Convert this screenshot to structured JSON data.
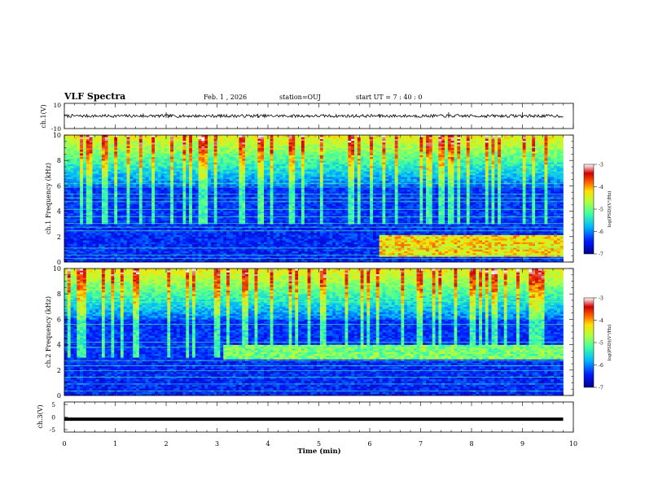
{
  "header": {
    "title": "VLF Spectra",
    "date": "Feb. 1 , 2026",
    "station": "station=OUJ",
    "start": "start UT = 7 : 40 : 0"
  },
  "colors": {
    "colormap": [
      "#00008c",
      "#0018ff",
      "#00b8ff",
      "#40ffa0",
      "#b0ff40",
      "#ffe000",
      "#ff6000",
      "#d00000",
      "#ffffff"
    ]
  },
  "chart_data": [
    {
      "type": "line",
      "panel": "ch1-waveform",
      "ylabel": "ch.1(V)",
      "ylim": [
        -10,
        10
      ],
      "yticks": [
        "10",
        "-10"
      ],
      "xlim": [
        0,
        10
      ],
      "level": 0,
      "noise_amplitude": 1.2,
      "spikes": [
        {
          "x": 2.0,
          "y": 2.8
        },
        {
          "x": 1.55,
          "y": 2.0
        },
        {
          "x": 7.55,
          "y": 3.0
        },
        {
          "x": 9.0,
          "y": 2.8
        },
        {
          "x": 3.8,
          "y": 1.8
        },
        {
          "x": 6.2,
          "y": 1.6
        }
      ]
    },
    {
      "type": "heatmap",
      "panel": "ch1-spectrogram",
      "ylabel": "ch.1 Frequency (kHz)",
      "ylim": [
        0,
        10
      ],
      "yticks": [
        "0",
        "2",
        "4",
        "6",
        "8",
        "10"
      ],
      "xlim": [
        0,
        9.8
      ],
      "colorbar": {
        "label": "log(PSD)(V²/Hz)",
        "range": [
          -7,
          -3
        ],
        "ticks": [
          "-3",
          "-4",
          "-5",
          "-6",
          "-7"
        ]
      },
      "lines_khz": [
        0.3,
        0.55,
        1.1,
        2.45,
        2.75,
        3.05,
        3.55,
        4.15,
        4.75,
        5.05,
        5.35,
        5.9,
        6.2
      ],
      "emission_band": {
        "t_start": 6.2,
        "f_low": 0.5,
        "f_high": 2.1,
        "level": -4.3
      }
    },
    {
      "type": "heatmap",
      "panel": "ch2-spectrogram",
      "ylabel": "ch.2 Frequency (kHz)",
      "ylim": [
        0,
        10
      ],
      "yticks": [
        "0",
        "2",
        "4",
        "6",
        "8",
        "10"
      ],
      "xlim": [
        0,
        9.8
      ],
      "colorbar": {
        "label": "log(PSD)(V²/Hz)",
        "range": [
          -7,
          -3
        ],
        "ticks": [
          "-3",
          "-4",
          "-5",
          "-6",
          "-7"
        ]
      },
      "lines_khz": [
        0.35,
        0.9,
        1.45,
        1.95,
        2.35,
        2.75,
        3.8,
        4.2,
        5.6,
        7.4
      ],
      "emission_band": {
        "t_start": 3.1,
        "f_low": 2.8,
        "f_high": 4.0,
        "level": -5.0
      }
    },
    {
      "type": "line",
      "panel": "ch3-waveform",
      "ylabel": "ch.3(V)",
      "ylim": [
        -5,
        5
      ],
      "yticks": [
        "5",
        "0",
        "-5"
      ],
      "xlim": [
        0,
        10
      ],
      "level": -0.7,
      "xlabel": "Time (min)",
      "xticks": [
        "0",
        "1",
        "2",
        "3",
        "4",
        "5",
        "6",
        "7",
        "8",
        "9",
        "10"
      ]
    }
  ]
}
